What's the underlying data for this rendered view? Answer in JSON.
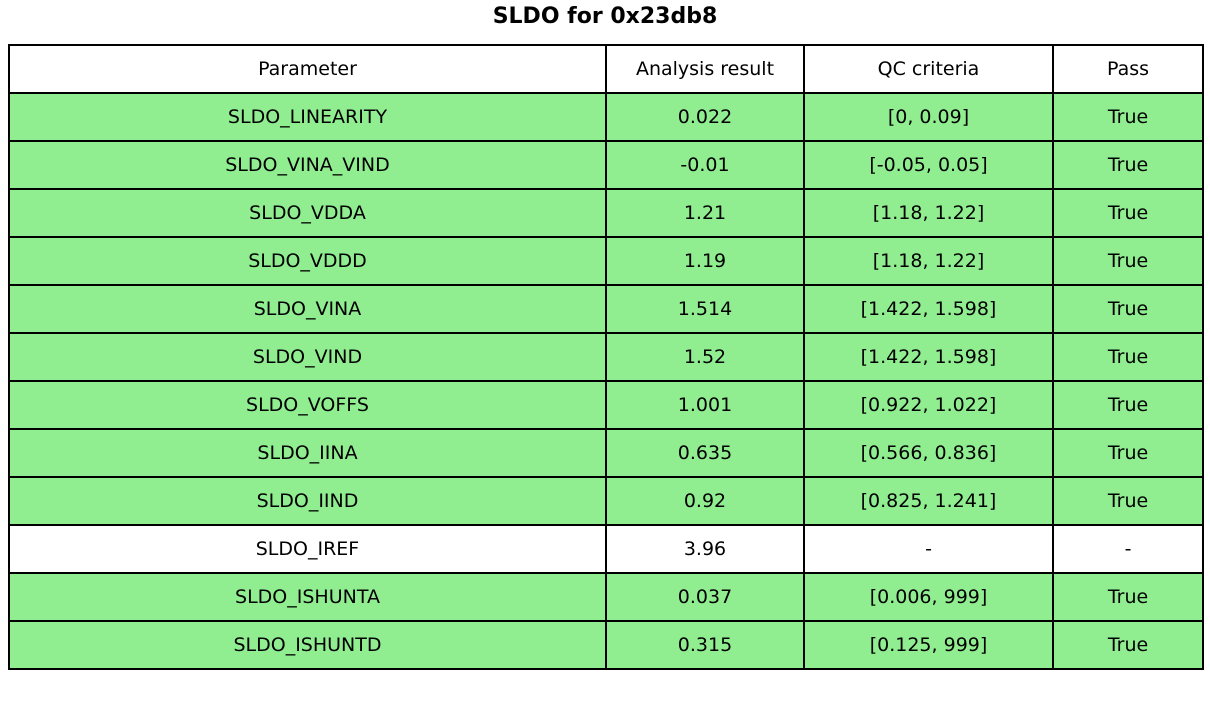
{
  "title": "SLDO for 0x23db8",
  "colors": {
    "pass_row": "#90EE90",
    "neutral_row": "#FFFFFF",
    "border": "#000000",
    "text": "#000000",
    "background": "#FFFFFF"
  },
  "chart_data": {
    "type": "table",
    "title": "SLDO for 0x23db8",
    "columns": [
      "Parameter",
      "Analysis result",
      "QC criteria",
      "Pass"
    ],
    "rows": [
      {
        "parameter": "SLDO_LINEARITY",
        "analysis_result": "0.022",
        "qc_criteria": "[0, 0.09]",
        "pass": "True",
        "row_color": "#90EE90"
      },
      {
        "parameter": "SLDO_VINA_VIND",
        "analysis_result": "-0.01",
        "qc_criteria": "[-0.05, 0.05]",
        "pass": "True",
        "row_color": "#90EE90"
      },
      {
        "parameter": "SLDO_VDDA",
        "analysis_result": "1.21",
        "qc_criteria": "[1.18, 1.22]",
        "pass": "True",
        "row_color": "#90EE90"
      },
      {
        "parameter": "SLDO_VDDD",
        "analysis_result": "1.19",
        "qc_criteria": "[1.18, 1.22]",
        "pass": "True",
        "row_color": "#90EE90"
      },
      {
        "parameter": "SLDO_VINA",
        "analysis_result": "1.514",
        "qc_criteria": "[1.422, 1.598]",
        "pass": "True",
        "row_color": "#90EE90"
      },
      {
        "parameter": "SLDO_VIND",
        "analysis_result": "1.52",
        "qc_criteria": "[1.422, 1.598]",
        "pass": "True",
        "row_color": "#90EE90"
      },
      {
        "parameter": "SLDO_VOFFS",
        "analysis_result": "1.001",
        "qc_criteria": "[0.922, 1.022]",
        "pass": "True",
        "row_color": "#90EE90"
      },
      {
        "parameter": "SLDO_IINA",
        "analysis_result": "0.635",
        "qc_criteria": "[0.566, 0.836]",
        "pass": "True",
        "row_color": "#90EE90"
      },
      {
        "parameter": "SLDO_IIND",
        "analysis_result": "0.92",
        "qc_criteria": "[0.825, 1.241]",
        "pass": "True",
        "row_color": "#90EE90"
      },
      {
        "parameter": "SLDO_IREF",
        "analysis_result": "3.96",
        "qc_criteria": "-",
        "pass": "-",
        "row_color": "#FFFFFF"
      },
      {
        "parameter": "SLDO_ISHUNTA",
        "analysis_result": "0.037",
        "qc_criteria": "[0.006, 999]",
        "pass": "True",
        "row_color": "#90EE90"
      },
      {
        "parameter": "SLDO_ISHUNTD",
        "analysis_result": "0.315",
        "qc_criteria": "[0.125, 999]",
        "pass": "True",
        "row_color": "#90EE90"
      }
    ]
  }
}
